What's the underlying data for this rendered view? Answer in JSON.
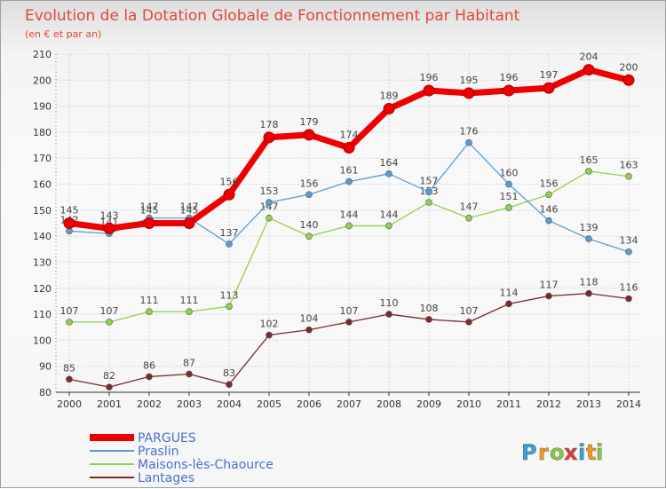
{
  "chart_data": {
    "type": "line",
    "title": "Evolution de la Dotation Globale de Fonctionnement par Habitant",
    "subtitle": "(en € et par an)",
    "x": [
      2000,
      2001,
      2002,
      2003,
      2004,
      2005,
      2006,
      2007,
      2008,
      2009,
      2010,
      2011,
      2012,
      2013,
      2014
    ],
    "ylim": [
      80,
      210
    ],
    "yticks": [
      80,
      90,
      100,
      110,
      120,
      130,
      140,
      150,
      160,
      170,
      180,
      190,
      200,
      210
    ],
    "grid": true,
    "series": [
      {
        "name": "PARGUES",
        "color": "#ee0000",
        "values": [
          145,
          143,
          145,
          145,
          156,
          178,
          179,
          174,
          189,
          196,
          195,
          196,
          197,
          204,
          200
        ]
      },
      {
        "name": "Praslin",
        "color": "#5b9bd5",
        "values": [
          142,
          141,
          147,
          147,
          137,
          153,
          156,
          161,
          164,
          157,
          176,
          160,
          146,
          139,
          134
        ]
      },
      {
        "name": "Maisons-lès-Chaource",
        "color": "#92d050",
        "values": [
          107,
          107,
          111,
          111,
          113,
          147,
          140,
          144,
          144,
          153,
          147,
          151,
          156,
          165,
          163
        ]
      },
      {
        "name": "Lantages",
        "color": "#7b2b2b",
        "values": [
          85,
          82,
          86,
          87,
          83,
          102,
          104,
          107,
          110,
          108,
          107,
          114,
          117,
          118,
          116
        ]
      }
    ]
  },
  "logo": {
    "letters": [
      "P",
      "r",
      "o",
      "x",
      "i",
      "t",
      "i"
    ],
    "colors": [
      "#3aa0d8",
      "#f29a1e",
      "#8cc63f",
      "#e33b3b",
      "#3aa0d8",
      "#f29a1e",
      "#8cc63f"
    ]
  }
}
